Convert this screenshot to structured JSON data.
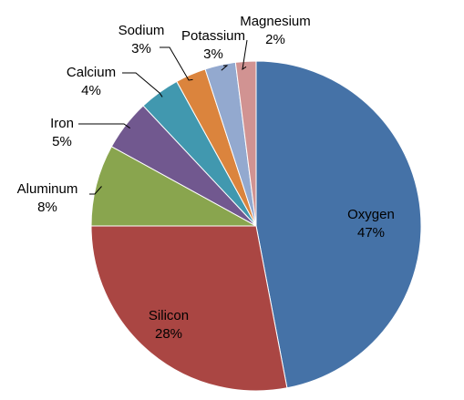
{
  "chart_data": {
    "type": "pie",
    "title": "",
    "categories": [
      "Oxygen",
      "Silicon",
      "Aluminum",
      "Iron",
      "Calcium",
      "Sodium",
      "Potassium",
      "Magnesium"
    ],
    "values": [
      47,
      28,
      8,
      5,
      4,
      3,
      3,
      2
    ],
    "value_labels": [
      "47%",
      "28%",
      "8%",
      "5%",
      "4%",
      "3%",
      "3%",
      "2%"
    ],
    "colors": [
      "#4572A7",
      "#AA4643",
      "#89A54E",
      "#71588F",
      "#4198AF",
      "#DB843D",
      "#93A9CF",
      "#D19392"
    ],
    "start_angle_deg": 0,
    "direction": "clockwise",
    "legend": "none",
    "data_labels": "inside for large slices, outside with leader lines for small slices"
  }
}
